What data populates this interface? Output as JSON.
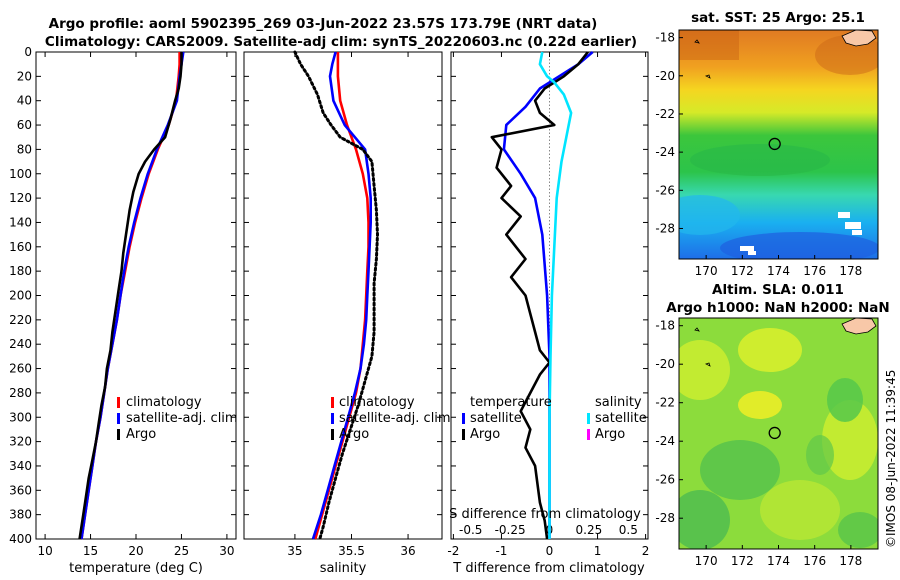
{
  "titles": {
    "line1": "Argo profile: aoml 5902395_269 03-Jun-2022 23.57S 173.79E (NRT data)",
    "line2": "Climatology: CARS2009. Satellite-adj clim: synTS_20220603.nc (0.22d earlier)",
    "sst": "sat. SST: 25 Argo: 25.1",
    "sla1": "Altim. SLA: 0.011",
    "sla2": "Argo h1000: NaN h2000: NaN"
  },
  "timestamp": "©IMOS 08-Jun-2022 11:39:45",
  "colors": {
    "climatology": "#ff0000",
    "satellite": "#0000ff",
    "argo": "#000000",
    "sat_salinity": "#00e5ff",
    "argo_salinity": "#ff00ff"
  },
  "chart_data": [
    {
      "type": "line",
      "id": "temperature",
      "xlabel": "temperature (deg C)",
      "xlim": [
        9,
        31
      ],
      "xticks": [
        "10",
        "15",
        "20",
        "25",
        "30"
      ],
      "xtick_values": [
        10,
        15,
        20,
        25,
        30
      ],
      "ylim": [
        0,
        400
      ],
      "yticks": [
        "0",
        "20",
        "40",
        "60",
        "80",
        "100",
        "120",
        "140",
        "160",
        "180",
        "200",
        "220",
        "240",
        "260",
        "280",
        "300",
        "320",
        "340",
        "360",
        "380",
        "400"
      ],
      "ytick_values": [
        0,
        20,
        40,
        60,
        80,
        100,
        120,
        140,
        160,
        180,
        200,
        220,
        240,
        260,
        280,
        300,
        320,
        340,
        360,
        380,
        400
      ],
      "legend": [
        "climatology",
        "satellite-adj. clim",
        "Argo"
      ],
      "series": [
        {
          "name": "climatology",
          "color": "#ff0000",
          "points": [
            [
              24.8,
              0
            ],
            [
              24.8,
              10
            ],
            [
              24.7,
              20
            ],
            [
              24.4,
              40
            ],
            [
              23.6,
              60
            ],
            [
              22.4,
              80
            ],
            [
              21.4,
              100
            ],
            [
              20.6,
              120
            ],
            [
              19.9,
              140
            ],
            [
              19.3,
              160
            ],
            [
              18.8,
              180
            ],
            [
              18.3,
              200
            ],
            [
              17.9,
              220
            ],
            [
              17.4,
              240
            ],
            [
              16.9,
              260
            ],
            [
              16.5,
              280
            ],
            [
              16.1,
              300
            ],
            [
              15.6,
              320
            ],
            [
              15.2,
              340
            ],
            [
              14.8,
              360
            ],
            [
              14.4,
              380
            ],
            [
              14.0,
              400
            ]
          ]
        },
        {
          "name": "satellite-adj. clim",
          "color": "#0000ff",
          "points": [
            [
              25.2,
              0
            ],
            [
              25.0,
              10
            ],
            [
              24.8,
              20
            ],
            [
              24.5,
              40
            ],
            [
              23.5,
              60
            ],
            [
              22.3,
              80
            ],
            [
              21.3,
              100
            ],
            [
              20.5,
              120
            ],
            [
              19.8,
              140
            ],
            [
              19.2,
              160
            ],
            [
              18.7,
              180
            ],
            [
              18.3,
              200
            ],
            [
              17.9,
              220
            ],
            [
              17.4,
              240
            ],
            [
              16.9,
              260
            ],
            [
              16.5,
              280
            ],
            [
              16.1,
              300
            ],
            [
              15.6,
              320
            ],
            [
              15.2,
              340
            ],
            [
              14.8,
              360
            ],
            [
              14.4,
              380
            ],
            [
              14.0,
              400
            ]
          ]
        },
        {
          "name": "Argo",
          "color": "#000000",
          "points": [
            [
              25.0,
              0
            ],
            [
              25.0,
              10
            ],
            [
              24.9,
              20
            ],
            [
              24.7,
              30
            ],
            [
              24.3,
              40
            ],
            [
              23.8,
              55
            ],
            [
              23.2,
              70
            ],
            [
              22.0,
              80
            ],
            [
              21.0,
              90
            ],
            [
              20.3,
              100
            ],
            [
              19.7,
              115
            ],
            [
              19.3,
              130
            ],
            [
              18.9,
              150
            ],
            [
              18.6,
              165
            ],
            [
              18.4,
              180
            ],
            [
              18.1,
              195
            ],
            [
              17.8,
              210
            ],
            [
              17.4,
              230
            ],
            [
              17.2,
              245
            ],
            [
              16.8,
              260
            ],
            [
              16.6,
              275
            ],
            [
              16.2,
              290
            ],
            [
              15.9,
              305
            ],
            [
              15.6,
              320
            ],
            [
              15.2,
              335
            ],
            [
              14.8,
              350
            ],
            [
              14.5,
              365
            ],
            [
              14.2,
              380
            ],
            [
              13.9,
              395
            ],
            [
              13.8,
              400
            ]
          ]
        }
      ]
    },
    {
      "type": "line",
      "id": "salinity",
      "xlabel": "salinity",
      "xlim": [
        34.55,
        36.3
      ],
      "xticks": [
        "35",
        "35.5",
        "36"
      ],
      "xtick_values": [
        35,
        35.5,
        36
      ],
      "ylim": [
        0,
        400
      ],
      "legend": [
        "climatology",
        "satellite-adj. clim",
        "Argo"
      ],
      "series": [
        {
          "name": "climatology",
          "color": "#ff0000",
          "points": [
            [
              35.38,
              0
            ],
            [
              35.38,
              10
            ],
            [
              35.38,
              20
            ],
            [
              35.4,
              40
            ],
            [
              35.46,
              60
            ],
            [
              35.54,
              80
            ],
            [
              35.6,
              100
            ],
            [
              35.64,
              120
            ],
            [
              35.65,
              140
            ],
            [
              35.65,
              160
            ],
            [
              35.64,
              180
            ],
            [
              35.63,
              200
            ],
            [
              35.62,
              220
            ],
            [
              35.6,
              240
            ],
            [
              35.58,
              260
            ],
            [
              35.54,
              280
            ],
            [
              35.48,
              300
            ],
            [
              35.42,
              320
            ],
            [
              35.36,
              340
            ],
            [
              35.3,
              360
            ],
            [
              35.24,
              380
            ],
            [
              35.18,
              400
            ]
          ]
        },
        {
          "name": "satellite-adj. clim",
          "color": "#0000ff",
          "points": [
            [
              35.36,
              0
            ],
            [
              35.33,
              10
            ],
            [
              35.31,
              20
            ],
            [
              35.34,
              40
            ],
            [
              35.44,
              60
            ],
            [
              35.62,
              80
            ],
            [
              35.65,
              100
            ],
            [
              35.67,
              120
            ],
            [
              35.67,
              140
            ],
            [
              35.66,
              160
            ],
            [
              35.65,
              180
            ],
            [
              35.64,
              200
            ],
            [
              35.63,
              220
            ],
            [
              35.61,
              240
            ],
            [
              35.58,
              260
            ],
            [
              35.53,
              280
            ],
            [
              35.47,
              300
            ],
            [
              35.41,
              320
            ],
            [
              35.35,
              340
            ],
            [
              35.29,
              360
            ],
            [
              35.23,
              380
            ],
            [
              35.16,
              400
            ]
          ]
        },
        {
          "name": "Argo",
          "color": "#000000",
          "points": [
            [
              35.0,
              0
            ],
            [
              35.05,
              10
            ],
            [
              35.12,
              20
            ],
            [
              35.2,
              35
            ],
            [
              35.25,
              50
            ],
            [
              35.32,
              60
            ],
            [
              35.4,
              70
            ],
            [
              35.6,
              80
            ],
            [
              35.68,
              90
            ],
            [
              35.7,
              110
            ],
            [
              35.72,
              130
            ],
            [
              35.73,
              150
            ],
            [
              35.72,
              170
            ],
            [
              35.7,
              190
            ],
            [
              35.7,
              210
            ],
            [
              35.7,
              230
            ],
            [
              35.68,
              250
            ],
            [
              35.62,
              270
            ],
            [
              35.56,
              290
            ],
            [
              35.49,
              310
            ],
            [
              35.42,
              330
            ],
            [
              35.36,
              350
            ],
            [
              35.3,
              370
            ],
            [
              35.25,
              390
            ],
            [
              35.22,
              400
            ]
          ]
        }
      ]
    },
    {
      "type": "line",
      "id": "difference",
      "xlabel": "T difference from climatology",
      "xlabel_top": "S difference from climatology",
      "xlim": [
        -2.05,
        2.05
      ],
      "xticks": [
        "-2",
        "-1",
        "0",
        "1",
        "2"
      ],
      "xtick_values": [
        -2,
        -1,
        0,
        1,
        2
      ],
      "xticks_top": [
        "-0.5",
        "-0.25",
        "0",
        "0.25",
        "0.5"
      ],
      "xtick_top_values": [
        -1.64,
        -0.82,
        0,
        0.82,
        1.64
      ],
      "ylim": [
        0,
        400
      ],
      "legend_temperature": {
        "heading": "temperature",
        "items": [
          "satellite",
          "Argo"
        ]
      },
      "legend_salinity": {
        "heading": "salinity",
        "items": [
          "satellite",
          "Argo"
        ]
      },
      "series": [
        {
          "name": "temperature satellite",
          "color": "#0000ff",
          "points": [
            [
              0.9,
              0
            ],
            [
              0.6,
              10
            ],
            [
              0.2,
              20
            ],
            [
              -0.2,
              30
            ],
            [
              -0.5,
              45
            ],
            [
              -0.9,
              60
            ],
            [
              -0.95,
              80
            ],
            [
              -0.6,
              100
            ],
            [
              -0.3,
              120
            ],
            [
              -0.15,
              150
            ],
            [
              -0.05,
              200
            ],
            [
              0,
              250
            ],
            [
              0,
              300
            ],
            [
              0,
              350
            ],
            [
              0,
              400
            ]
          ]
        },
        {
          "name": "temperature Argo",
          "color": "#000000",
          "points": [
            [
              0.8,
              0
            ],
            [
              0.6,
              10
            ],
            [
              0.3,
              20
            ],
            [
              -0.1,
              30
            ],
            [
              -0.3,
              40
            ],
            [
              -0.2,
              50
            ],
            [
              0.1,
              60
            ],
            [
              -1.2,
              70
            ],
            [
              -1.0,
              80
            ],
            [
              -1.1,
              95
            ],
            [
              -0.8,
              110
            ],
            [
              -1.0,
              120
            ],
            [
              -0.6,
              135
            ],
            [
              -0.9,
              150
            ],
            [
              -0.5,
              170
            ],
            [
              -0.8,
              185
            ],
            [
              -0.5,
              200
            ],
            [
              -0.4,
              215
            ],
            [
              -0.3,
              230
            ],
            [
              -0.2,
              245
            ],
            [
              0.0,
              255
            ],
            [
              -0.2,
              265
            ],
            [
              -0.4,
              280
            ],
            [
              -0.6,
              295
            ],
            [
              -0.4,
              310
            ],
            [
              -0.5,
              325
            ],
            [
              -0.3,
              340
            ],
            [
              -0.25,
              355
            ],
            [
              -0.2,
              370
            ],
            [
              -0.1,
              385
            ],
            [
              -0.05,
              400
            ]
          ]
        },
        {
          "name": "salinity satellite",
          "color": "#00e5ff",
          "points": [
            [
              -0.15,
              0
            ],
            [
              -0.2,
              10
            ],
            [
              -0.05,
              20
            ],
            [
              0.1,
              25
            ],
            [
              0.3,
              35
            ],
            [
              0.45,
              50
            ],
            [
              0.35,
              70
            ],
            [
              0.25,
              90
            ],
            [
              0.15,
              120
            ],
            [
              0.1,
              160
            ],
            [
              0.05,
              200
            ],
            [
              0.02,
              250
            ],
            [
              0.0,
              300
            ],
            [
              0.0,
              350
            ],
            [
              0.0,
              400
            ]
          ]
        }
      ]
    }
  ],
  "maps": {
    "sst": {
      "xticks": [
        "170",
        "172",
        "174",
        "176",
        "178"
      ],
      "xtick_values": [
        170,
        172,
        174,
        176,
        178
      ],
      "yticks": [
        "-18",
        "-20",
        "-22",
        "-24",
        "-26",
        "-28"
      ],
      "ytick_values": [
        -18,
        -20,
        -22,
        -24,
        -26,
        -28
      ],
      "lon_range": [
        168.5,
        179.5
      ],
      "lat_range": [
        -29.6,
        -17.6
      ],
      "marker": [
        173.79,
        -23.57
      ]
    },
    "sla": {
      "xticks": [
        "170",
        "172",
        "174",
        "176",
        "178"
      ],
      "xtick_values": [
        170,
        172,
        174,
        176,
        178
      ],
      "yticks": [
        "-18",
        "-20",
        "-22",
        "-24",
        "-26",
        "-28"
      ],
      "ytick_values": [
        -18,
        -20,
        -22,
        -24,
        -26,
        -28
      ],
      "lon_range": [
        168.5,
        179.5
      ],
      "lat_range": [
        -29.6,
        -17.6
      ],
      "marker": [
        173.79,
        -23.57
      ]
    }
  }
}
